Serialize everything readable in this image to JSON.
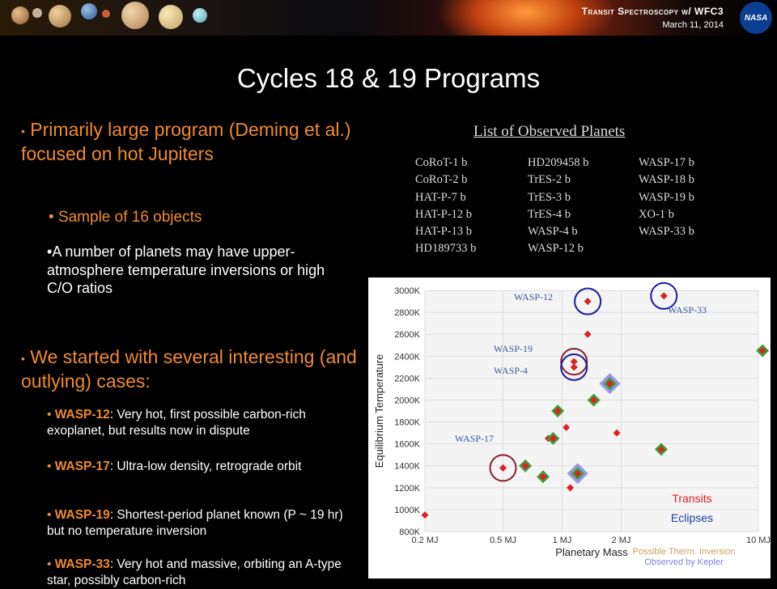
{
  "header": {
    "title": "Transit Spectroscopy w/ WFC3",
    "date": "March 11, 2014",
    "logo": "NASA"
  },
  "slide": {
    "title": "Cycles 18 & 19 Programs",
    "bullet1": "Primarily large program (Deming et al.) focused on hot Jupiters",
    "bullet1_sub1": "Sample of 16 objects",
    "bullet1_sub2": "A number of planets may have upper-atmosphere temperature inversions or high C/O ratios",
    "bullet2": "We started with several interesting (and outlying) cases:",
    "cases": [
      {
        "name": "WASP-12",
        "text": ": Very hot, first possible carbon-rich exoplanet, but results now in dispute"
      },
      {
        "name": "WASP-17",
        "text": ": Ultra-low density, retrograde orbit"
      },
      {
        "name": "WASP-19",
        "text": ": Shortest-period planet known (P ~ 19 hr) but no temperature inversion"
      },
      {
        "name": "WASP-33",
        "text": ": Very hot and massive, orbiting an A-type star, possibly carbon-rich"
      }
    ]
  },
  "planet_list": {
    "title": "List of Observed Planets",
    "col1": [
      "CoRoT-1 b",
      "CoRoT-2 b",
      "HAT-P-7 b",
      "HAT-P-12 b",
      "HAT-P-13 b",
      "HD189733 b"
    ],
    "col2": [
      "HD209458 b",
      "TrES-2 b",
      "TrES-3 b",
      "TrES-4 b",
      "WASP-4 b",
      "WASP-12 b"
    ],
    "col3": [
      "WASP-17 b",
      "WASP-18 b",
      "WASP-19 b",
      "XO-1 b",
      "WASP-33 b"
    ]
  },
  "chart_data": {
    "type": "scatter",
    "xlabel": "Planetary Mass",
    "ylabel": "Equilibrium Temperature",
    "x_scale": "log",
    "x_ticks": [
      "0.2 MJ",
      "0.5 MJ",
      "1 MJ",
      "2 MJ",
      "10 MJ"
    ],
    "y_ticks": [
      "800K",
      "1000K",
      "1200K",
      "1400K",
      "1600K",
      "1800K",
      "2000K",
      "2200K",
      "2400K",
      "2600K",
      "2800K",
      "3000K"
    ],
    "ylim": [
      800,
      3000
    ],
    "legend": [
      "Transits",
      "Eclipses",
      "Possible Therm. Inversion",
      "Observed by Kepler"
    ],
    "colors": {
      "transit": "#e02020",
      "eclipse": "#3aa03a",
      "inversion": "#c8a060",
      "kepler": "#8080e0"
    },
    "points": [
      {
        "mass": 0.2,
        "temp": 950,
        "eclipse": false
      },
      {
        "mass": 0.5,
        "temp": 1380,
        "eclipse": false,
        "label": "WASP-17"
      },
      {
        "mass": 0.65,
        "temp": 1400,
        "eclipse": true
      },
      {
        "mass": 0.8,
        "temp": 1300,
        "eclipse": true
      },
      {
        "mass": 0.85,
        "temp": 1650,
        "eclipse": false
      },
      {
        "mass": 0.9,
        "temp": 1650,
        "eclipse": true
      },
      {
        "mass": 0.95,
        "temp": 1900,
        "eclipse": true
      },
      {
        "mass": 1.05,
        "temp": 1750,
        "eclipse": false
      },
      {
        "mass": 1.1,
        "temp": 1200,
        "eclipse": false
      },
      {
        "mass": 1.2,
        "temp": 1330,
        "eclipse": true,
        "kepler": true
      },
      {
        "mass": 1.15,
        "temp": 2350,
        "eclipse": false,
        "label": "WASP-19"
      },
      {
        "mass": 1.15,
        "temp": 2300,
        "eclipse": false,
        "label": "WASP-4"
      },
      {
        "mass": 1.35,
        "temp": 2600,
        "eclipse": false
      },
      {
        "mass": 1.45,
        "temp": 2000,
        "eclipse": true
      },
      {
        "mass": 1.35,
        "temp": 2900,
        "eclipse": false,
        "label": "WASP-12"
      },
      {
        "mass": 1.75,
        "temp": 2150,
        "eclipse": true,
        "kepler": true
      },
      {
        "mass": 1.9,
        "temp": 1700,
        "eclipse": false
      },
      {
        "mass": 3.2,
        "temp": 1550,
        "eclipse": true
      },
      {
        "mass": 3.3,
        "temp": 2950,
        "eclipse": false,
        "label": "WASP-33"
      },
      {
        "mass": 10.5,
        "temp": 2450,
        "eclipse": true
      }
    ],
    "annotations": [
      "WASP-12",
      "WASP-33",
      "WASP-19",
      "WASP-4",
      "WASP-17"
    ]
  }
}
